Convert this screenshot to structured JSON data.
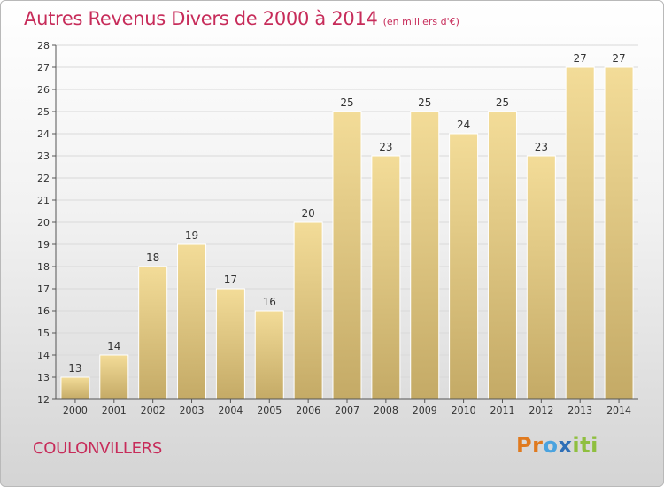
{
  "header": {
    "title": "Autres Revenus Divers de 2000 à 2014",
    "subtitle": "(en milliers d'€)"
  },
  "footer": {
    "place": "COULONVILLERS",
    "logo": {
      "letters": [
        "P",
        "r",
        "o",
        "x",
        "i",
        "t",
        "i"
      ],
      "colors": [
        "#e07a1f",
        "#e07a1f",
        "#4aa3df",
        "#2f6fb7",
        "#8fbf3f",
        "#8fbf3f",
        "#8fbf3f"
      ]
    }
  },
  "colors": {
    "bar_top": "#f3dc98",
    "bar_bottom": "#c4aa66",
    "bar_edge": "#ffffff",
    "axis": "#555555",
    "grid": "#d9d9d9",
    "text": "#333333"
  },
  "chart_data": {
    "type": "bar",
    "categories": [
      "2000",
      "2001",
      "2002",
      "2003",
      "2004",
      "2005",
      "2006",
      "2007",
      "2008",
      "2009",
      "2010",
      "2011",
      "2012",
      "2013",
      "2014"
    ],
    "values": [
      13,
      14,
      18,
      19,
      17,
      16,
      20,
      25,
      23,
      25,
      24,
      25,
      23,
      27,
      27
    ],
    "ylim": [
      12,
      28
    ],
    "yticks": [
      12,
      13,
      14,
      15,
      16,
      17,
      18,
      19,
      20,
      21,
      22,
      23,
      24,
      25,
      26,
      27,
      28
    ],
    "grid": true
  }
}
